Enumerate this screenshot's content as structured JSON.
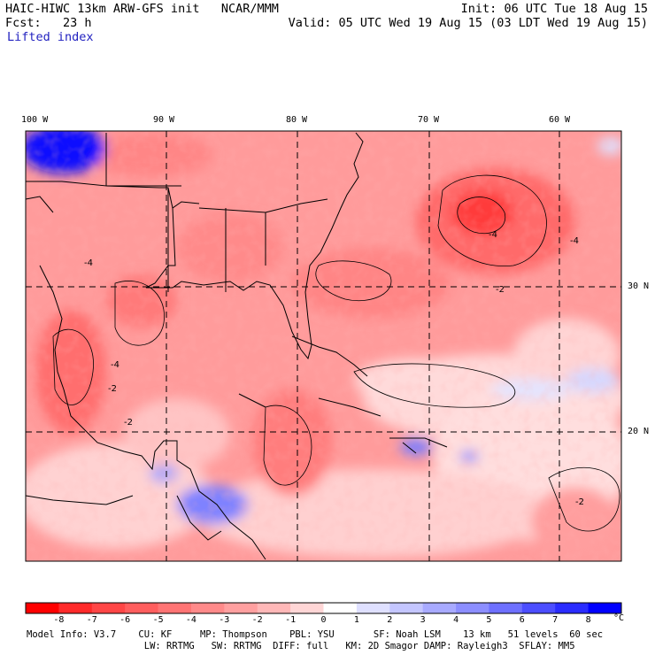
{
  "header": {
    "title": "HAIC-HIWC 13km ARW-GFS init   NCAR/MMM",
    "forecast": "Fcst:   23 h",
    "field": "Lifted index",
    "init": "Init: 06 UTC Tue 18 Aug 15",
    "valid": "Valid: 05 UTC Wed 19 Aug 15 (03 LDT Wed 19 Aug 15)"
  },
  "map": {
    "longitude_labels": [
      "100 W",
      "90 W",
      "80 W",
      "70 W",
      "60 W"
    ],
    "latitude_labels": [
      "30 N",
      "20 N"
    ],
    "contour_labels": [
      "-4",
      "-2",
      "-4",
      "-2",
      "-4",
      "-4",
      "-2",
      "-2"
    ]
  },
  "colorbar": {
    "ticks": [
      "-8",
      "-7",
      "-6",
      "-5",
      "-4",
      "-3",
      "-2",
      "-1",
      "0",
      "1",
      "2",
      "3",
      "4",
      "5",
      "6",
      "7",
      "8"
    ],
    "unit": "°C",
    "colors": [
      "#ff0000",
      "#ff2a2a",
      "#ff4646",
      "#ff5e5e",
      "#ff7474",
      "#ff8a8a",
      "#ffa0a0",
      "#ffb8b8",
      "#ffd6d6",
      "#ffffff",
      "#dfe0ff",
      "#c4c6ff",
      "#a8aaff",
      "#8c8eff",
      "#6e70ff",
      "#4c4eff",
      "#2a2cff",
      "#0000ff"
    ]
  },
  "footer": {
    "line1": "Model Info: V3.7    CU: KF     MP: Thompson    PBL: YSU       SF: Noah LSM    13 km   51 levels  60 sec",
    "line2": "                     LW: RRTMG   SW: RRTMG  DIFF: full   KM: 2D Smagor DAMP: Rayleigh3  SFLAY: MM5"
  }
}
